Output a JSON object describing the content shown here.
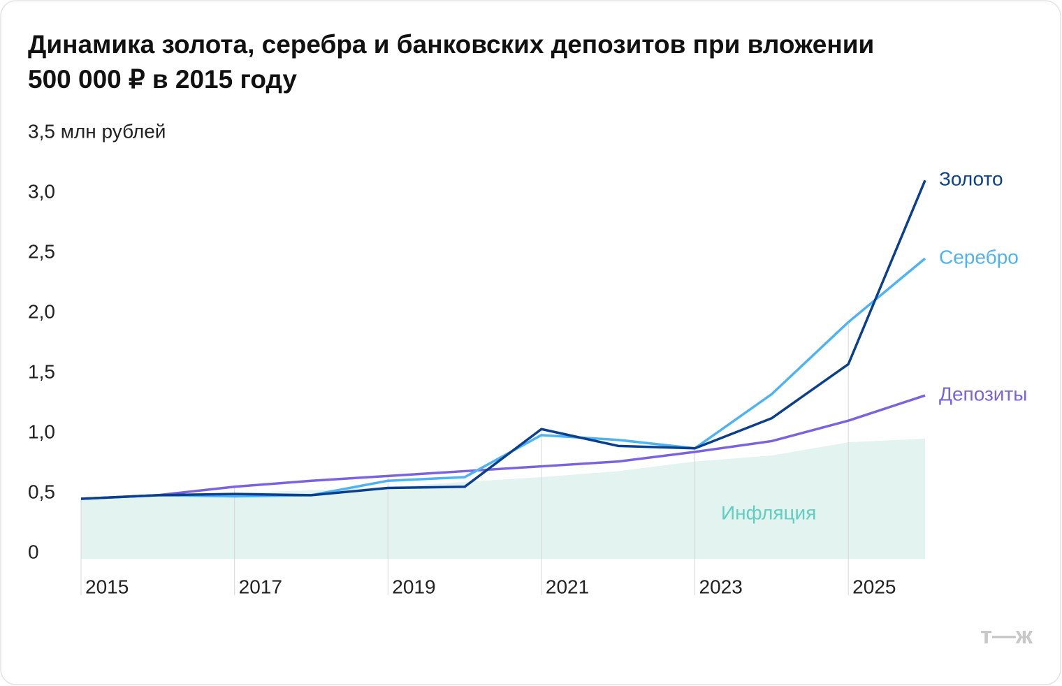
{
  "chart_data": {
    "type": "line",
    "title": "Динамика золота, серебра и банковских депозитов при вложении",
    "subtitle": "500 000 ₽ в 2015 году",
    "x": [
      2015,
      2016,
      2017,
      2018,
      2019,
      2020,
      2021,
      2022,
      2023,
      2024,
      2025,
      2026
    ],
    "xlim": [
      2015,
      2026
    ],
    "xticks": [
      2015,
      2017,
      2019,
      2021,
      2023,
      2025
    ],
    "ylim": [
      0,
      3.5
    ],
    "yticks": [
      0,
      {
        "value": 0.5,
        "label": "0,5"
      },
      {
        "value": 1,
        "label": "1,0"
      },
      {
        "value": 1.5,
        "label": "1,5"
      },
      {
        "value": 2,
        "label": "2,0"
      },
      {
        "value": 2.5,
        "label": "2,5"
      },
      {
        "value": 3,
        "label": "3,0"
      },
      {
        "value": 3.5,
        "label": "3,5 млн рублей"
      }
    ],
    "series": [
      {
        "name": "Инфляция",
        "color": "#5fcfc0",
        "fill": "#e2f3f0",
        "style": "area",
        "values": [
          0.5,
          0.52,
          0.55,
          0.57,
          0.6,
          0.64,
          0.68,
          0.73,
          0.81,
          0.86,
          0.97,
          1.0
        ]
      },
      {
        "name": "Депозиты",
        "color": "#7b63e0",
        "style": "line",
        "values": [
          0.5,
          0.53,
          0.6,
          0.65,
          0.69,
          0.73,
          0.77,
          0.81,
          0.89,
          0.98,
          1.15,
          1.36
        ]
      },
      {
        "name": "Серебро",
        "color": "#4db3f5",
        "style": "line",
        "values": [
          0.5,
          0.53,
          0.52,
          0.53,
          0.65,
          0.68,
          1.03,
          0.99,
          0.92,
          1.37,
          1.97,
          2.5
        ]
      },
      {
        "name": "Золото",
        "color": "#0a3f8f",
        "style": "line",
        "values": [
          0.5,
          0.53,
          0.54,
          0.53,
          0.59,
          0.6,
          1.08,
          0.94,
          0.92,
          1.17,
          1.62,
          3.15
        ]
      }
    ],
    "watermark": "т—ж"
  }
}
